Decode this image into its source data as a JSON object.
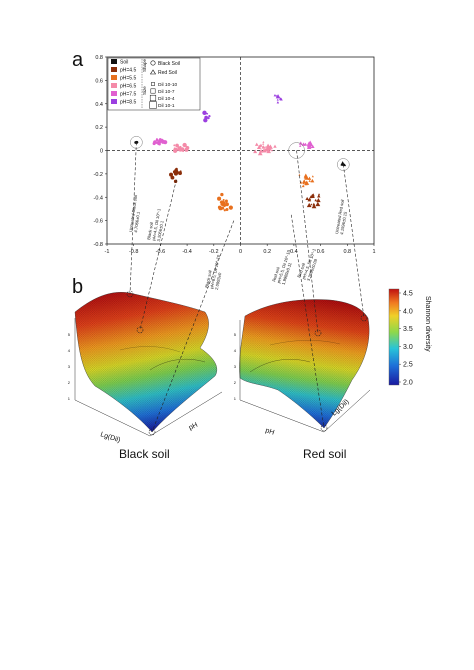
{
  "panels": {
    "a": "a",
    "b": "b"
  },
  "chart_data": [
    {
      "type": "scatter",
      "title": "",
      "xlabel": "",
      "ylabel": "",
      "xlim": [
        -1,
        1
      ],
      "ylim": [
        -0.8,
        0.8
      ],
      "x_ticks": [
        "-1",
        "-0.8",
        "-0.6",
        "-0.4",
        "-0.2",
        "0",
        "0.2",
        "0.4",
        "0.6",
        "0.8",
        "1"
      ],
      "y_ticks": [
        "-0.8",
        "-0.6",
        "-0.4",
        "-0.2",
        "0",
        "0.2",
        "0.4",
        "0.6",
        "0.8"
      ],
      "legend_placement": "top-left",
      "legend_color": [
        {
          "label": "Soil",
          "color": "#111111"
        },
        {
          "label": "pH=4.5",
          "color": "#8b2e0a"
        },
        {
          "label": "pH=5.5",
          "color": "#e8701e"
        },
        {
          "label": "pH=6.5",
          "color": "#f48aa8"
        },
        {
          "label": "pH=7.5",
          "color": "#e060d0"
        },
        {
          "label": "pH=8.5",
          "color": "#9b3fe0"
        }
      ],
      "legend_shape_title": "Shape",
      "legend_shape": [
        {
          "label": "Black Soil",
          "marker": "circle"
        },
        {
          "label": "Red Soil",
          "marker": "triangle"
        }
      ],
      "legend_size_title": "Size",
      "legend_size": [
        "Dil 10-10",
        "Dil 10-7",
        "Dil 10-4",
        "Dil 10-1"
      ],
      "clusters": [
        {
          "name": "Soil (black)",
          "color": "#111111",
          "marker": "circle",
          "cx": -0.78,
          "cy": 0.07,
          "n": 6,
          "sx": 0.02,
          "sy": 0.01
        },
        {
          "name": "Soil (red)",
          "color": "#111111",
          "marker": "triangle",
          "cx": 0.77,
          "cy": -0.12,
          "n": 6,
          "sx": 0.02,
          "sy": 0.01
        },
        {
          "name": "pH=4.5 black",
          "color": "#8b2e0a",
          "marker": "circle",
          "cx": -0.48,
          "cy": -0.2,
          "n": 14,
          "sx": 0.05,
          "sy": 0.08
        },
        {
          "name": "pH=4.5 red",
          "color": "#8b2e0a",
          "marker": "triangle",
          "cx": 0.55,
          "cy": -0.42,
          "n": 18,
          "sx": 0.08,
          "sy": 0.1
        },
        {
          "name": "pH=5.5 black",
          "color": "#e8701e",
          "marker": "circle",
          "cx": -0.12,
          "cy": -0.45,
          "n": 20,
          "sx": 0.06,
          "sy": 0.1
        },
        {
          "name": "pH=5.5 red",
          "color": "#e8701e",
          "marker": "triangle",
          "cx": 0.5,
          "cy": -0.25,
          "n": 16,
          "sx": 0.07,
          "sy": 0.08
        },
        {
          "name": "pH=6.5 black",
          "color": "#f48aa8",
          "marker": "circle",
          "cx": -0.45,
          "cy": 0.02,
          "n": 18,
          "sx": 0.09,
          "sy": 0.05
        },
        {
          "name": "pH=6.5 red",
          "color": "#f48aa8",
          "marker": "triangle",
          "cx": 0.18,
          "cy": 0.02,
          "n": 30,
          "sx": 0.1,
          "sy": 0.07
        },
        {
          "name": "pH=7.5 black",
          "color": "#e060d0",
          "marker": "circle",
          "cx": -0.6,
          "cy": 0.07,
          "n": 16,
          "sx": 0.08,
          "sy": 0.04
        },
        {
          "name": "pH=7.5 red",
          "color": "#e060d0",
          "marker": "triangle",
          "cx": 0.5,
          "cy": 0.05,
          "n": 14,
          "sx": 0.07,
          "sy": 0.04
        },
        {
          "name": "pH=8.5 black",
          "color": "#9b3fe0",
          "marker": "circle",
          "cx": -0.25,
          "cy": 0.3,
          "n": 8,
          "sx": 0.03,
          "sy": 0.05
        },
        {
          "name": "pH=8.5 red",
          "color": "#9b3fe0",
          "marker": "triangle",
          "cx": 0.28,
          "cy": 0.45,
          "n": 8,
          "sx": 0.05,
          "sy": 0.1
        }
      ],
      "annotations": [
        {
          "lines": [
            "Untreated Black soil",
            "4.7066±0.1"
          ]
        },
        {
          "lines": [
            "Black soil",
            "pH=4.5, Dil 10^-1",
            "3.2066±0.1"
          ]
        },
        {
          "lines": [
            "Black soil",
            "pH=8.5, Dil 10^-10",
            "2.0993±0"
          ]
        },
        {
          "lines": [
            "Red soil",
            "pH=5.5, Dil 10^-10",
            "1.9989±0.11"
          ]
        },
        {
          "lines": [
            "Red soil",
            "pH=4.5, Dil 10^-1",
            "3.2696±0.09"
          ]
        },
        {
          "lines": [
            "Untreated Red soil",
            "4.1596±0.15"
          ]
        }
      ]
    },
    {
      "type": "heatmap",
      "title": "",
      "surfaces": [
        {
          "name": "Black soil",
          "x_axis": "Lg(Dil)",
          "y_axis": "pH",
          "z_ticks": [
            "1",
            "2",
            "3",
            "4",
            "5"
          ]
        },
        {
          "name": "Red soil",
          "x_axis": "pH",
          "y_axis": "Lg(Dil)",
          "z_ticks": [
            "1",
            "2",
            "3",
            "4",
            "5"
          ]
        }
      ],
      "colorbar": {
        "label": "Shannon diversity",
        "ticks": [
          "2.0",
          "2.5",
          "3.0",
          "3.5",
          "4.0",
          "4.5"
        ],
        "range": [
          2.0,
          4.5
        ]
      }
    }
  ],
  "labels": {
    "black_soil": "Black soil",
    "red_soil": "Red soil"
  }
}
